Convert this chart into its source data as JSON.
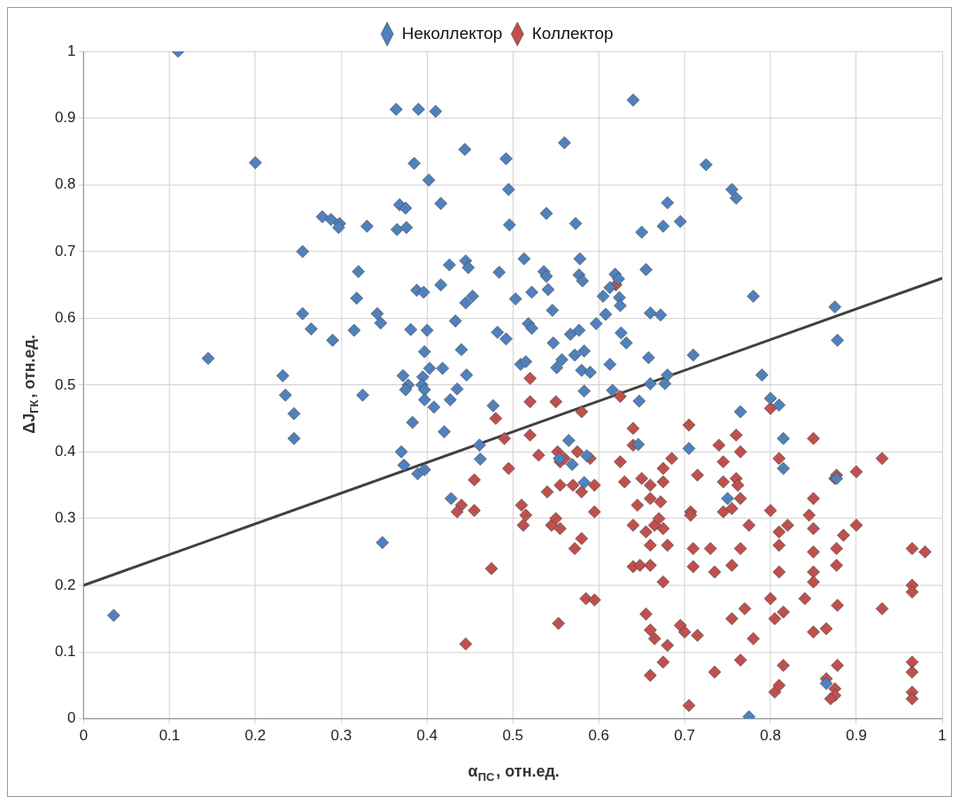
{
  "chart_data": {
    "type": "scatter",
    "xlabel": "α$_{ПС}$, отн.ед.",
    "ylabel": "ΔJ$_{ГК}$, отн.ед.",
    "xlim": [
      0,
      1
    ],
    "ylim": [
      0,
      1
    ],
    "xticks": [
      0,
      0.1,
      0.2,
      0.3,
      0.4,
      0.5,
      0.6,
      0.7,
      0.8,
      0.9,
      1
    ],
    "yticks": [
      0,
      0.1,
      0.2,
      0.3,
      0.4,
      0.5,
      0.6,
      0.7,
      0.8,
      0.9,
      1
    ],
    "grid": true,
    "legend": "top",
    "marker": "diamond",
    "series": [
      {
        "name": "Неколлектор",
        "color": "#4f81bd",
        "x": [
          0.11,
          0.035,
          0.145,
          0.2,
          0.255,
          0.255,
          0.265,
          0.232,
          0.235,
          0.245,
          0.245,
          0.278,
          0.288,
          0.298,
          0.297,
          0.33,
          0.29,
          0.32,
          0.318,
          0.315,
          0.325,
          0.342,
          0.346,
          0.348,
          0.364,
          0.365,
          0.368,
          0.375,
          0.376,
          0.37,
          0.373,
          0.372,
          0.378,
          0.375,
          0.381,
          0.385,
          0.383,
          0.389,
          0.39,
          0.388,
          0.396,
          0.395,
          0.394,
          0.397,
          0.397,
          0.4,
          0.397,
          0.397,
          0.402,
          0.41,
          0.403,
          0.408,
          0.416,
          0.416,
          0.418,
          0.42,
          0.426,
          0.427,
          0.428,
          0.433,
          0.435,
          0.44,
          0.444,
          0.445,
          0.448,
          0.445,
          0.453,
          0.446,
          0.461,
          0.462,
          0.477,
          0.484,
          0.482,
          0.492,
          0.495,
          0.496,
          0.492,
          0.503,
          0.513,
          0.509,
          0.518,
          0.515,
          0.522,
          0.522,
          0.539,
          0.536,
          0.539,
          0.541,
          0.546,
          0.547,
          0.551,
          0.557,
          0.56,
          0.554,
          0.565,
          0.569,
          0.567,
          0.572,
          0.573,
          0.578,
          0.577,
          0.581,
          0.577,
          0.58,
          0.583,
          0.583,
          0.586,
          0.583,
          0.59,
          0.597,
          0.605,
          0.608,
          0.613,
          0.613,
          0.616,
          0.619,
          0.623,
          0.624,
          0.625,
          0.626,
          0.632,
          0.646,
          0.647,
          0.65,
          0.64,
          0.655,
          0.66,
          0.658,
          0.66,
          0.672,
          0.675,
          0.68,
          0.677,
          0.68,
          0.695,
          0.71,
          0.705,
          0.725,
          0.755,
          0.76,
          0.78,
          0.79,
          0.8,
          0.81,
          0.815,
          0.815,
          0.765,
          0.75,
          0.875,
          0.878,
          0.877,
          0.865,
          0.775
        ],
        "values": [
          1,
          0.155,
          0.54,
          0.833,
          0.7,
          0.607,
          0.584,
          0.514,
          0.485,
          0.457,
          0.42,
          0.752,
          0.748,
          0.742,
          0.736,
          0.738,
          0.567,
          0.67,
          0.63,
          0.582,
          0.485,
          0.607,
          0.593,
          0.264,
          0.913,
          0.733,
          0.77,
          0.765,
          0.736,
          0.4,
          0.38,
          0.514,
          0.5,
          0.493,
          0.583,
          0.832,
          0.444,
          0.367,
          0.913,
          0.642,
          0.639,
          0.512,
          0.5,
          0.493,
          0.478,
          0.582,
          0.55,
          0.373,
          0.807,
          0.91,
          0.525,
          0.467,
          0.772,
          0.65,
          0.525,
          0.43,
          0.68,
          0.478,
          0.33,
          0.596,
          0.494,
          0.553,
          0.853,
          0.686,
          0.676,
          0.623,
          0.633,
          0.515,
          0.41,
          0.389,
          0.469,
          0.669,
          0.579,
          0.839,
          0.793,
          0.74,
          0.569,
          0.629,
          0.689,
          0.531,
          0.592,
          0.535,
          0.639,
          0.585,
          0.757,
          0.67,
          0.663,
          0.643,
          0.612,
          0.563,
          0.526,
          0.538,
          0.863,
          0.39,
          0.417,
          0.381,
          0.576,
          0.545,
          0.742,
          0.689,
          0.665,
          0.656,
          0.582,
          0.522,
          0.551,
          0.491,
          0.394,
          0.354,
          0.519,
          0.592,
          0.633,
          0.606,
          0.646,
          0.531,
          0.492,
          0.666,
          0.659,
          0.631,
          0.619,
          0.578,
          0.563,
          0.411,
          0.476,
          0.729,
          0.927,
          0.673,
          0.608,
          0.541,
          0.502,
          0.605,
          0.738,
          0.773,
          0.502,
          0.515,
          0.745,
          0.545,
          0.405,
          0.83,
          0.793,
          0.78,
          0.633,
          0.515,
          0.48,
          0.47,
          0.42,
          0.375,
          0.46,
          0.33,
          0.617,
          0.567,
          0.36,
          0.053,
          0.003
        ]
      },
      {
        "name": "Коллектор",
        "color": "#c0504d",
        "x": [
          0.62,
          0.625,
          0.52,
          0.52,
          0.48,
          0.49,
          0.51,
          0.515,
          0.512,
          0.52,
          0.53,
          0.495,
          0.475,
          0.445,
          0.455,
          0.455,
          0.44,
          0.435,
          0.54,
          0.545,
          0.55,
          0.552,
          0.555,
          0.555,
          0.56,
          0.55,
          0.555,
          0.553,
          0.57,
          0.572,
          0.58,
          0.58,
          0.575,
          0.58,
          0.585,
          0.595,
          0.59,
          0.595,
          0.595,
          0.625,
          0.63,
          0.64,
          0.64,
          0.64,
          0.64,
          0.645,
          0.648,
          0.65,
          0.655,
          0.655,
          0.66,
          0.66,
          0.66,
          0.66,
          0.66,
          0.665,
          0.66,
          0.665,
          0.67,
          0.675,
          0.675,
          0.672,
          0.675,
          0.675,
          0.675,
          0.68,
          0.68,
          0.685,
          0.695,
          0.7,
          0.705,
          0.707,
          0.707,
          0.71,
          0.71,
          0.705,
          0.715,
          0.715,
          0.73,
          0.735,
          0.735,
          0.74,
          0.745,
          0.745,
          0.745,
          0.755,
          0.755,
          0.755,
          0.76,
          0.76,
          0.762,
          0.765,
          0.765,
          0.765,
          0.77,
          0.765,
          0.775,
          0.78,
          0.8,
          0.8,
          0.8,
          0.805,
          0.805,
          0.81,
          0.81,
          0.81,
          0.81,
          0.81,
          0.815,
          0.815,
          0.82,
          0.84,
          0.845,
          0.85,
          0.85,
          0.85,
          0.85,
          0.85,
          0.85,
          0.85,
          0.865,
          0.865,
          0.875,
          0.877,
          0.877,
          0.877,
          0.878,
          0.878,
          0.875,
          0.875,
          0.87,
          0.885,
          0.9,
          0.9,
          0.93,
          0.93,
          0.965,
          0.965,
          0.965,
          0.965,
          0.965,
          0.965,
          0.965,
          0.98
        ],
        "values": [
          0.65,
          0.483,
          0.51,
          0.475,
          0.45,
          0.42,
          0.32,
          0.305,
          0.29,
          0.425,
          0.395,
          0.375,
          0.225,
          0.112,
          0.358,
          0.312,
          0.32,
          0.31,
          0.34,
          0.29,
          0.475,
          0.4,
          0.385,
          0.35,
          0.39,
          0.3,
          0.285,
          0.143,
          0.35,
          0.255,
          0.34,
          0.27,
          0.4,
          0.46,
          0.18,
          0.178,
          0.39,
          0.35,
          0.31,
          0.385,
          0.355,
          0.435,
          0.41,
          0.228,
          0.29,
          0.32,
          0.23,
          0.36,
          0.28,
          0.157,
          0.35,
          0.33,
          0.26,
          0.23,
          0.133,
          0.12,
          0.065,
          0.29,
          0.3,
          0.375,
          0.355,
          0.325,
          0.285,
          0.085,
          0.205,
          0.26,
          0.11,
          0.39,
          0.14,
          0.13,
          0.44,
          0.31,
          0.305,
          0.255,
          0.228,
          0.02,
          0.125,
          0.365,
          0.255,
          0.22,
          0.07,
          0.41,
          0.385,
          0.355,
          0.31,
          0.315,
          0.23,
          0.15,
          0.425,
          0.36,
          0.35,
          0.33,
          0.255,
          0.4,
          0.165,
          0.088,
          0.29,
          0.12,
          0.465,
          0.312,
          0.18,
          0.15,
          0.04,
          0.05,
          0.39,
          0.28,
          0.26,
          0.22,
          0.16,
          0.08,
          0.29,
          0.18,
          0.305,
          0.42,
          0.33,
          0.285,
          0.25,
          0.22,
          0.205,
          0.13,
          0.135,
          0.06,
          0.36,
          0.365,
          0.255,
          0.23,
          0.17,
          0.08,
          0.045,
          0.035,
          0.03,
          0.275,
          0.37,
          0.29,
          0.39,
          0.165,
          0.255,
          0.2,
          0.19,
          0.085,
          0.07,
          0.04,
          0.03,
          0.25
        ]
      },
      {
        "type": "line",
        "color": "#404040",
        "marker": "none",
        "x": [
          0,
          1
        ],
        "values": [
          0.2,
          0.66
        ]
      }
    ]
  }
}
